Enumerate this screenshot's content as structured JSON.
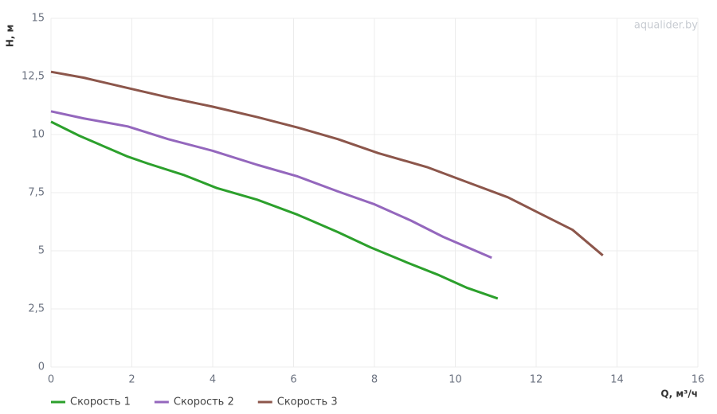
{
  "chart_data": {
    "type": "line",
    "watermark": "aqualider.by",
    "y_label": "H, м",
    "x_label": "Q, м³/ч",
    "xlim": [
      0,
      16
    ],
    "xticks": [
      0,
      2,
      4,
      6,
      8,
      10,
      12,
      14,
      16
    ],
    "ylim": [
      0,
      15
    ],
    "yticks": [
      0,
      {
        "value": 2.5,
        "label": "2,5"
      },
      5,
      {
        "value": 7.5,
        "label": "7,5"
      },
      10,
      {
        "value": 12.5,
        "label": "12,5"
      },
      15
    ],
    "grid": true,
    "legend": "bottom-left",
    "series": [
      {
        "name": "Скорость 1",
        "color": "#2ca02c",
        "x": [
          0,
          0.7,
          1.9,
          2.4,
          3.3,
          4.1,
          5.1,
          6.1,
          7.1,
          7.9,
          8.8,
          9.6,
          10.3,
          11.05
        ],
        "values": [
          10.55,
          9.95,
          9.05,
          8.75,
          8.25,
          7.7,
          7.2,
          6.55,
          5.8,
          5.15,
          4.5,
          3.95,
          3.4,
          2.95
        ]
      },
      {
        "name": "Скорость 2",
        "color": "#9467bd",
        "x": [
          0,
          0.8,
          1.9,
          2.9,
          4.0,
          5.1,
          6.1,
          7.1,
          8.0,
          8.9,
          9.7,
          10.9
        ],
        "values": [
          11.0,
          10.7,
          10.35,
          9.8,
          9.3,
          8.7,
          8.2,
          7.55,
          7.0,
          6.3,
          5.6,
          4.7
        ]
      },
      {
        "name": "Скорость 3",
        "color": "#8c564b",
        "x": [
          0,
          0.8,
          1.9,
          2.9,
          4.0,
          5.1,
          6.1,
          7.1,
          8.1,
          9.3,
          10.3,
          11.3,
          12.1,
          12.9,
          13.65
        ],
        "values": [
          12.7,
          12.45,
          12.0,
          11.6,
          11.2,
          10.75,
          10.3,
          9.8,
          9.2,
          8.6,
          7.95,
          7.3,
          6.6,
          5.9,
          4.8
        ]
      }
    ]
  }
}
